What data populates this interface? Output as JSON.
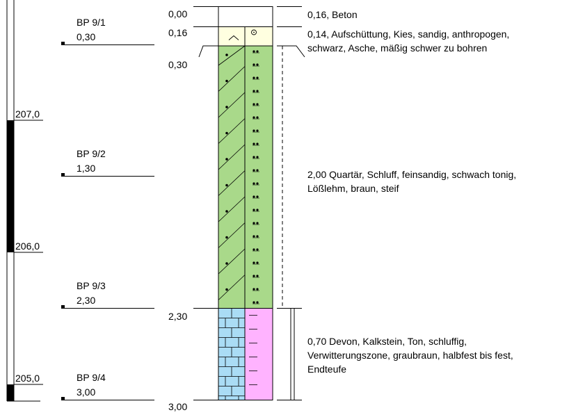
{
  "elevation_scale": {
    "labels": [
      {
        "value": "207,0",
        "level": 207.0
      },
      {
        "value": "206,0",
        "level": 206.0
      },
      {
        "value": "205,0",
        "level": 205.0
      }
    ]
  },
  "samples": [
    {
      "name": "BP 9/1",
      "depth": "0,30"
    },
    {
      "name": "BP 9/2",
      "depth": "1,30"
    },
    {
      "name": "BP 9/3",
      "depth": "2,30"
    },
    {
      "name": "BP 9/4",
      "depth": "3,00"
    }
  ],
  "depth_labels": [
    "0,00",
    "0,16",
    "0,30",
    "2,30",
    "3,00"
  ],
  "layers": [
    {
      "top": 0.0,
      "bottom": 0.16,
      "type": "concrete",
      "color": "#ffffff",
      "description": [
        "0,16, Beton"
      ]
    },
    {
      "top": 0.16,
      "bottom": 0.3,
      "type": "fill",
      "color": "#ffffe0",
      "description": [
        "0,14, Aufschüttung, Kies, sandig, anthropogen,",
        "schwarz, Asche, mäßig schwer zu bohren"
      ]
    },
    {
      "top": 0.3,
      "bottom": 2.3,
      "type": "silt",
      "color": "#a9d98a",
      "description": [
        "2,00 Quartär, Schluff, feinsandig, schwach tonig,",
        "Lößlehm, braun, steif"
      ]
    },
    {
      "top": 2.3,
      "bottom": 3.0,
      "type": "limestone",
      "color": "#aadcf5",
      "color2": "#ffb3ff",
      "description": [
        "0,70 Devon, Kalkstein, Ton, schluffig,",
        "Verwitterungszone, graubraun, halbfest bis fest,",
        "Endteufe"
      ]
    }
  ]
}
